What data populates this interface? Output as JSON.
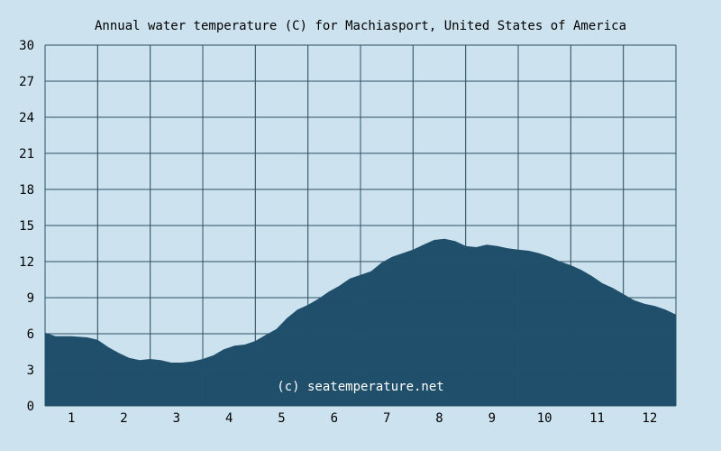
{
  "chart_data": {
    "type": "area",
    "title": "Annual water temperature (C) for Machiasport, United States of America",
    "watermark": "(c) seatemperature.net",
    "xlabel": "",
    "ylabel": "",
    "x_tick_labels": [
      "1",
      "2",
      "3",
      "4",
      "5",
      "6",
      "7",
      "8",
      "9",
      "10",
      "11",
      "12"
    ],
    "y_ticks": [
      0,
      3,
      6,
      9,
      12,
      15,
      18,
      21,
      24,
      27,
      30
    ],
    "ylim": [
      0,
      30
    ],
    "xlim": [
      0.5,
      12.5
    ],
    "grid": true,
    "legend": "none",
    "colors": {
      "background": "#cce3ef",
      "fill": "#1f4f6b",
      "grid": "#2e5064",
      "text": "#000000",
      "watermark": "#ffffff"
    },
    "series": [
      {
        "x": [
          0.5,
          0.7,
          1.0,
          1.3,
          1.5,
          1.7,
          1.9,
          2.1,
          2.3,
          2.5,
          2.7,
          2.9,
          3.1,
          3.3,
          3.5,
          3.7,
          3.9,
          4.1,
          4.3,
          4.5,
          4.7,
          4.9,
          5.1,
          5.3,
          5.5,
          5.7,
          5.9,
          6.1,
          6.3,
          6.5,
          6.7,
          6.9,
          7.1,
          7.3,
          7.5,
          7.7,
          7.9,
          8.1,
          8.3,
          8.5,
          8.7,
          8.9,
          9.1,
          9.3,
          9.5,
          9.7,
          9.9,
          10.1,
          10.3,
          10.5,
          10.7,
          10.9,
          11.1,
          11.3,
          11.5,
          11.7,
          11.9,
          12.1,
          12.3,
          12.5
        ],
        "values": [
          6.1,
          5.8,
          5.8,
          5.7,
          5.5,
          4.9,
          4.4,
          4.0,
          3.8,
          3.9,
          3.8,
          3.6,
          3.6,
          3.7,
          3.9,
          4.2,
          4.7,
          5.0,
          5.1,
          5.4,
          5.9,
          6.4,
          7.3,
          8.0,
          8.4,
          8.9,
          9.5,
          10.0,
          10.6,
          10.9,
          11.2,
          11.9,
          12.4,
          12.7,
          13.0,
          13.4,
          13.8,
          13.9,
          13.7,
          13.3,
          13.2,
          13.4,
          13.3,
          13.1,
          13.0,
          12.9,
          12.7,
          12.4,
          12.0,
          11.7,
          11.3,
          10.8,
          10.2,
          9.8,
          9.3,
          8.8,
          8.5,
          8.3,
          8.0,
          7.6
        ]
      }
    ]
  }
}
